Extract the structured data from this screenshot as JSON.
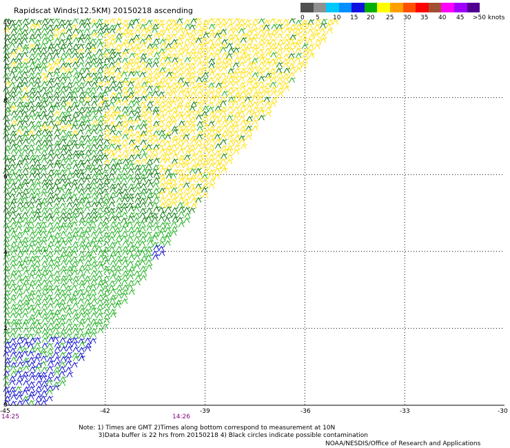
{
  "title": "Rapidscat Winds(12.5KM) 20150218 ascending",
  "colorbar": {
    "colors": [
      "#505050",
      "#909090",
      "#00c8ff",
      "#0090ff",
      "#1010e0",
      "#00b000",
      "#ffff00",
      "#ffa000",
      "#ff5000",
      "#ff0000",
      "#a05030",
      "#ff00ff",
      "#a000ff",
      "#500090"
    ],
    "labels": [
      "0",
      "5",
      "10",
      "15",
      "20",
      "25",
      "30",
      "35",
      "40",
      "45",
      ">50 knots"
    ]
  },
  "axes": {
    "x_ticks": [
      "-45",
      "-42",
      "-39",
      "-36",
      "-33",
      "-30"
    ],
    "y_ticks": [
      "0",
      "2",
      "4",
      "6",
      "8",
      "10"
    ],
    "time_labels": [
      "14:25",
      "14:26"
    ]
  },
  "wind_colors": {
    "dark_green": "#0a7a0a",
    "green": "#22b022",
    "yellow": "#ffe000",
    "blue": "#1010d0"
  },
  "notes": [
    "Note: 1) Times are GMT 2)Times along bottom correspond to measurement at 10N",
    "          3)Data buffer is 22 hrs from 20150218 4) Black circles indicate possible contamination"
  ],
  "credit": "NOAA/NESDIS/Office of Research and Applications"
}
